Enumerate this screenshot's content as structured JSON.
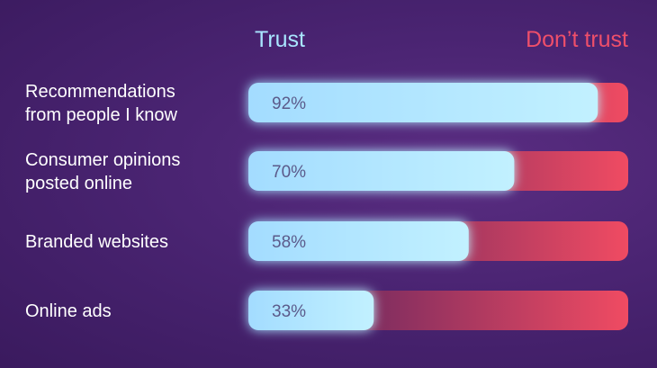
{
  "chart_data": {
    "type": "bar",
    "orientation": "horizontal",
    "stacked": true,
    "categories": [
      [
        "Recommendations",
        "from people I know"
      ],
      [
        "Consumer opinions",
        "posted online"
      ],
      [
        "Branded websites"
      ],
      [
        "Online ads"
      ]
    ],
    "series": [
      {
        "name": "Trust",
        "values": [
          92,
          70,
          58,
          33
        ],
        "color": "#a9e6ff"
      },
      {
        "name": "Don’t trust",
        "values": [
          8,
          30,
          42,
          67
        ],
        "color": "#ef4f6a"
      }
    ],
    "value_labels": [
      "92%",
      "70%",
      "58%",
      "33%"
    ],
    "xlim": [
      0,
      100
    ],
    "legend": "top",
    "grid": false
  }
}
